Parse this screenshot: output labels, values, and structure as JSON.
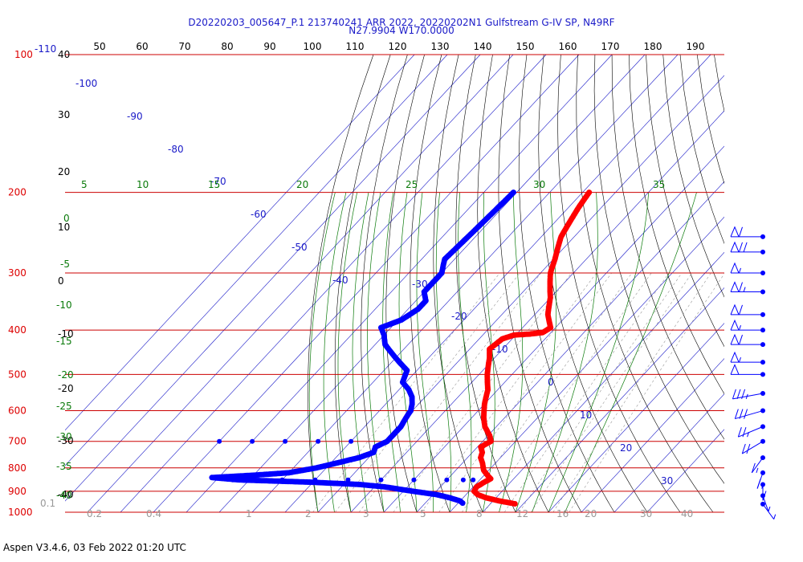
{
  "header": {
    "title_line1": "D20220203_005647_P.1 213740241 ARR 2022, 20220202N1 Gulfstream G-IV SP, N49RF",
    "title_line2": "N27.9904 W170.0000"
  },
  "footer": {
    "text": "Aspen V3.4.6, 03 Feb 2022  01:20 UTC"
  },
  "colors": {
    "temperature": "#ff0000",
    "dewpoint": "#0000ff",
    "isobar": "#cc0000",
    "isotherm": "#1a1ac8",
    "dry_adiabat": "#000000",
    "moist_adiabat": "#0a7a0a",
    "mixing_ratio": "#999999"
  },
  "chart_data": {
    "type": "skew-t",
    "pressure_levels": [
      100,
      200,
      300,
      400,
      500,
      600,
      700,
      800,
      900,
      1000
    ],
    "pressure_labels": [
      "100",
      "200",
      "300",
      "400",
      "500",
      "600",
      "700",
      "800",
      "900",
      "1000"
    ],
    "top_label": "-110",
    "top_temperature_labels": [
      "50",
      "60",
      "70",
      "80",
      "90",
      "100",
      "110",
      "120",
      "130",
      "140",
      "150",
      "160",
      "170",
      "180",
      "190"
    ],
    "left_scale_labels": [
      "40",
      "30",
      "20",
      "10",
      "0",
      "-10",
      "-20",
      "-30",
      "-40"
    ],
    "isotherm_labels": [
      "-100",
      "-90",
      "-80",
      "-70",
      "-60",
      "-50",
      "-40",
      "-30",
      "-20",
      "-10",
      "0",
      "10",
      "20",
      "30"
    ],
    "moist_adiabat_labels": [
      "5",
      "10",
      "15",
      "20",
      "25",
      "30",
      "35",
      "0",
      "-5",
      "-10",
      "-15",
      "-20",
      "-25",
      "-30",
      "-35",
      "-40"
    ],
    "mixing_ratio_labels": [
      "0.1",
      "0.2",
      "0.4",
      "1",
      "2",
      "3",
      "5",
      "8",
      "12",
      "16",
      "20",
      "30",
      "40"
    ],
    "temperature": [
      [
        200,
        -48
      ],
      [
        215,
        -47
      ],
      [
        250,
        -44
      ],
      [
        280,
        -39.5
      ],
      [
        300,
        -37
      ],
      [
        340,
        -30
      ],
      [
        370,
        -26
      ],
      [
        395,
        -21.5
      ],
      [
        405,
        -22.5
      ],
      [
        408,
        -26
      ],
      [
        410,
        -30.5
      ],
      [
        418,
        -33
      ],
      [
        440,
        -34
      ],
      [
        460,
        -31.5
      ],
      [
        480,
        -29.5
      ],
      [
        500,
        -27.5
      ],
      [
        540,
        -23
      ],
      [
        580,
        -20
      ],
      [
        620,
        -16.5
      ],
      [
        650,
        -13.5
      ],
      [
        680,
        -9.5
      ],
      [
        700,
        -7.5
      ],
      [
        720,
        -9
      ],
      [
        740,
        -7
      ],
      [
        760,
        -6
      ],
      [
        780,
        -4
      ],
      [
        810,
        -1.5
      ],
      [
        830,
        1
      ],
      [
        845,
        3
      ],
      [
        860,
        2
      ],
      [
        880,
        1
      ],
      [
        900,
        1.5
      ],
      [
        915,
        3.5
      ],
      [
        930,
        7
      ],
      [
        945,
        12
      ],
      [
        960,
        18
      ]
    ],
    "dewpoint": [
      [
        200,
        -71
      ],
      [
        240,
        -72
      ],
      [
        280,
        -73
      ],
      [
        300,
        -70
      ],
      [
        330,
        -70
      ],
      [
        345,
        -67
      ],
      [
        360,
        -67
      ],
      [
        380,
        -69
      ],
      [
        395,
        -73
      ],
      [
        410,
        -70
      ],
      [
        430,
        -67
      ],
      [
        460,
        -60
      ],
      [
        490,
        -53
      ],
      [
        520,
        -51
      ],
      [
        540,
        -47
      ],
      [
        560,
        -44
      ],
      [
        580,
        -42
      ],
      [
        600,
        -40.5
      ],
      [
        620,
        -40
      ],
      [
        650,
        -39
      ],
      [
        680,
        -39
      ],
      [
        700,
        -39
      ],
      [
        720,
        -41
      ],
      [
        740,
        -40
      ],
      [
        760,
        -43
      ],
      [
        780,
        -48
      ],
      [
        800,
        -53
      ],
      [
        820,
        -60
      ],
      [
        830,
        -70
      ],
      [
        840,
        -82
      ],
      [
        850,
        -73
      ],
      [
        860,
        -50
      ],
      [
        870,
        -35
      ],
      [
        880,
        -27
      ],
      [
        900,
        -17
      ],
      [
        915,
        -9
      ],
      [
        930,
        -4
      ],
      [
        945,
        0
      ],
      [
        960,
        2
      ]
    ],
    "dewpoint_sparse": [
      [
        700,
        -50
      ],
      [
        700,
        -60
      ],
      [
        700,
        -70
      ],
      [
        700,
        -80
      ],
      [
        700,
        -90
      ],
      [
        850,
        -75
      ],
      [
        850,
        -70
      ],
      [
        850,
        -60
      ],
      [
        850,
        -50
      ],
      [
        850,
        -40
      ],
      [
        850,
        -30
      ],
      [
        850,
        -20
      ],
      [
        850,
        -10
      ],
      [
        850,
        -5
      ],
      [
        850,
        -2
      ]
    ],
    "wind_barbs": [
      {
        "p": 250,
        "speed": 60,
        "dir": 270
      },
      {
        "p": 270,
        "speed": 70,
        "dir": 270
      },
      {
        "p": 300,
        "speed": 55,
        "dir": 270
      },
      {
        "p": 330,
        "speed": 65,
        "dir": 270
      },
      {
        "p": 370,
        "speed": 60,
        "dir": 270
      },
      {
        "p": 400,
        "speed": 55,
        "dir": 270
      },
      {
        "p": 430,
        "speed": 60,
        "dir": 270
      },
      {
        "p": 470,
        "speed": 55,
        "dir": 270
      },
      {
        "p": 500,
        "speed": 50,
        "dir": 270
      },
      {
        "p": 550,
        "speed": 35,
        "dir": 250
      },
      {
        "p": 600,
        "speed": 30,
        "dir": 240
      },
      {
        "p": 650,
        "speed": 25,
        "dir": 230
      },
      {
        "p": 700,
        "speed": 20,
        "dir": 220
      },
      {
        "p": 760,
        "speed": 15,
        "dir": 200
      },
      {
        "p": 820,
        "speed": 15,
        "dir": 190
      },
      {
        "p": 870,
        "speed": 10,
        "dir": 180
      },
      {
        "p": 920,
        "speed": 5,
        "dir": 170
      },
      {
        "p": 960,
        "speed": 5,
        "dir": 160
      }
    ]
  }
}
